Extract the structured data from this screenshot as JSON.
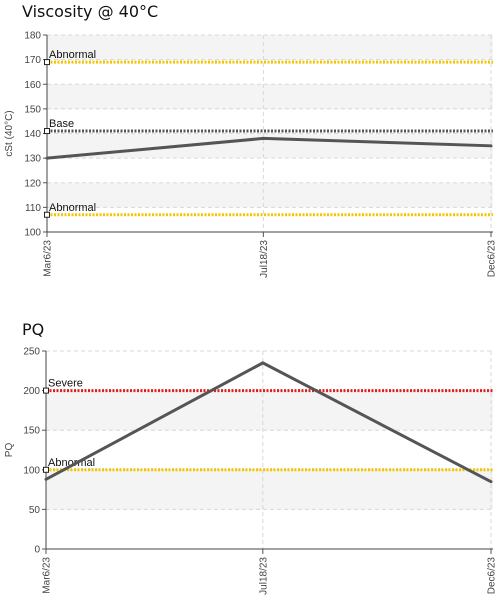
{
  "chart_data": [
    {
      "type": "line",
      "title": "Viscosity @ 40°C",
      "ylabel": "cSt (40°C)",
      "xlabel": "",
      "categories": [
        "Mar6/23",
        "Jul18/23",
        "Dec6/23"
      ],
      "x_dates": [
        "2023-03-06",
        "2023-07-18",
        "2023-12-06"
      ],
      "series": [
        {
          "values": [
            130,
            138,
            135
          ]
        }
      ],
      "reference_lines": [
        {
          "label": "Abnormal",
          "value": 169,
          "color": "#f2c500"
        },
        {
          "label": "Base",
          "value": 141,
          "color": "#555555"
        },
        {
          "label": "Abnormal",
          "value": 107,
          "color": "#f2c500"
        }
      ],
      "ylim": [
        100,
        180
      ],
      "yticks": [
        100,
        110,
        120,
        130,
        140,
        150,
        160,
        170,
        180
      ],
      "grid": true,
      "series_color": "#555555"
    },
    {
      "type": "line",
      "title": "PQ",
      "ylabel": "PQ",
      "xlabel": "",
      "categories": [
        "Mar6/23",
        "Jul18/23",
        "Dec6/23"
      ],
      "x_dates": [
        "2023-03-06",
        "2023-07-18",
        "2023-12-06"
      ],
      "series": [
        {
          "values": [
            88,
            235,
            85
          ]
        }
      ],
      "reference_lines": [
        {
          "label": "Severe",
          "value": 200,
          "color": "#e02020"
        },
        {
          "label": "Abnormal",
          "value": 100,
          "color": "#f2c500"
        }
      ],
      "ylim": [
        0,
        250
      ],
      "yticks": [
        0,
        50,
        100,
        150,
        200,
        250
      ],
      "grid": true,
      "series_color": "#555555"
    }
  ]
}
